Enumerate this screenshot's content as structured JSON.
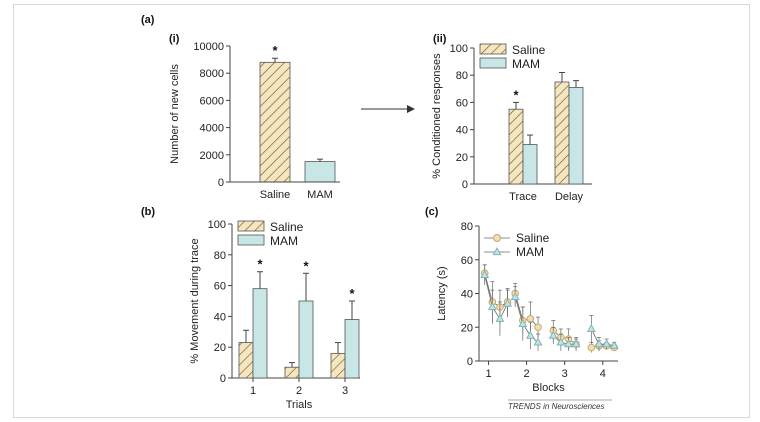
{
  "colors": {
    "saline_fill": "#f6e6bf",
    "saline_hatch": "#6a5a3a",
    "mam_fill": "#c9e6e6",
    "edge": "#555555",
    "line_saline": "#f0dfb5",
    "line_mam": "#c2e2e4"
  },
  "labels": {
    "a": "(a)",
    "a_i": "(i)",
    "a_ii": "(ii)",
    "b": "(b)",
    "c": "(c)",
    "credit": "TRENDS in Neurosciences"
  },
  "chart_data": [
    {
      "panel": "a-i",
      "type": "bar",
      "categories": [
        "Saline",
        "MAM"
      ],
      "values": [
        8800,
        1500
      ],
      "errors": [
        300,
        180
      ],
      "ylabel": "Number of new cells",
      "ylim": [
        0,
        10000
      ],
      "yticks": [
        0,
        2000,
        4000,
        6000,
        8000,
        10000
      ],
      "annotations": [
        "*"
      ]
    },
    {
      "panel": "a-ii",
      "type": "bar",
      "categories": [
        "Trace",
        "Delay"
      ],
      "series": [
        {
          "name": "Saline",
          "values": [
            55,
            75
          ],
          "errors": [
            5,
            7
          ]
        },
        {
          "name": "MAM",
          "values": [
            29,
            71
          ],
          "errors": [
            7,
            5
          ]
        }
      ],
      "ylabel": "% Conditioned responses",
      "ylim": [
        0,
        100
      ],
      "yticks": [
        0,
        20,
        40,
        60,
        80,
        100
      ],
      "legend": "top-left",
      "annotations": [
        "*"
      ]
    },
    {
      "panel": "b",
      "type": "bar",
      "categories": [
        "1",
        "2",
        "3"
      ],
      "series": [
        {
          "name": "Saline",
          "values": [
            23,
            7,
            16
          ],
          "errors": [
            8,
            3,
            7
          ]
        },
        {
          "name": "MAM",
          "values": [
            58,
            50,
            38
          ],
          "errors": [
            11,
            18,
            12
          ]
        }
      ],
      "xlabel": "Trials",
      "ylabel": "% Movement during trace",
      "ylim": [
        0,
        100
      ],
      "yticks": [
        0,
        20,
        40,
        60,
        80,
        100
      ],
      "legend": "top-left",
      "annotations": [
        "*",
        "*",
        "*"
      ]
    },
    {
      "panel": "c",
      "type": "line",
      "series": [
        {
          "name": "Saline",
          "x": [
            0.9,
            1.1,
            1.3,
            1.5,
            1.7,
            1.9,
            2.1,
            2.3,
            2.7,
            2.9,
            3.1,
            3.3,
            3.7,
            3.9,
            4.1,
            4.3
          ],
          "y": [
            52,
            35,
            32,
            35,
            40,
            24,
            25,
            20,
            18,
            14,
            13,
            10,
            8,
            9,
            9,
            8
          ],
          "errors": [
            5,
            12,
            10,
            8,
            6,
            8,
            10,
            6,
            6,
            5,
            6,
            4,
            3,
            3,
            2,
            2
          ]
        },
        {
          "name": "MAM",
          "x": [
            0.9,
            1.1,
            1.3,
            1.5,
            1.7,
            1.9,
            2.1,
            2.3,
            2.7,
            2.9,
            3.1,
            3.3,
            3.7,
            3.9,
            4.1,
            4.3
          ],
          "y": [
            51,
            32,
            25,
            34,
            38,
            22,
            15,
            11,
            15,
            11,
            10,
            10,
            19,
            10,
            10,
            9
          ],
          "errors": [
            6,
            10,
            10,
            8,
            6,
            10,
            8,
            5,
            5,
            5,
            4,
            3,
            8,
            4,
            3,
            2
          ]
        }
      ],
      "xlabel": "Blocks",
      "ylabel": "Latency (s)",
      "ylim": [
        0,
        80
      ],
      "yticks": [
        0,
        20,
        40,
        60,
        80
      ],
      "xticks": [
        1,
        2,
        3,
        4
      ],
      "legend": "top-left"
    }
  ]
}
